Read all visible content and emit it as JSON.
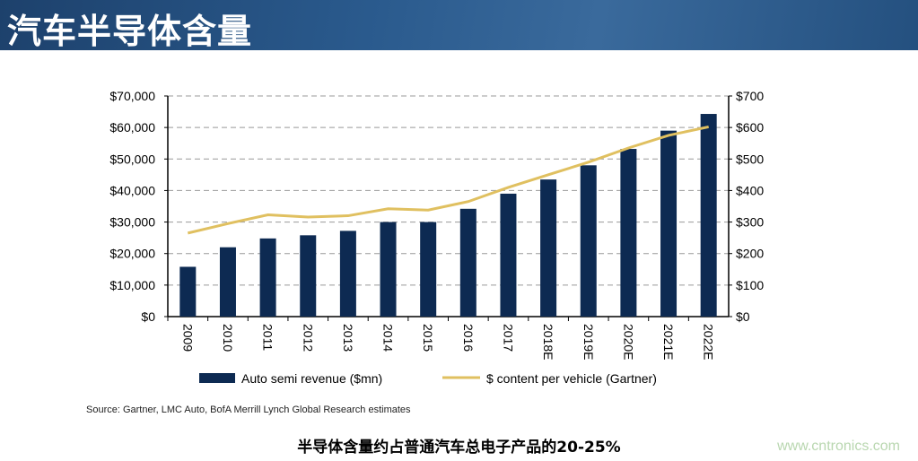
{
  "header": {
    "title": "汽车半导体含量"
  },
  "chart_data": {
    "type": "bar",
    "categories": [
      "2009",
      "2010",
      "2011",
      "2012",
      "2013",
      "2014",
      "2015",
      "2016",
      "2017",
      "2018E",
      "2019E",
      "2020E",
      "2021E",
      "2022E"
    ],
    "series": [
      {
        "name": "Auto semi revenue ($mn)",
        "type": "bar",
        "axis": "left",
        "color": "#0d2a52",
        "values": [
          15800,
          22000,
          24800,
          25800,
          27200,
          30000,
          30000,
          34200,
          39000,
          43500,
          48000,
          53200,
          59000,
          64300
        ]
      },
      {
        "name": "$ content per vehicle (Gartner)",
        "type": "line",
        "axis": "right",
        "color": "#e0c060",
        "values": [
          265,
          295,
          323,
          316,
          320,
          342,
          338,
          365,
          410,
          450,
          490,
          535,
          575,
          602
        ]
      }
    ],
    "y_left": {
      "ylim": [
        0,
        70000
      ],
      "ticks": [
        "$0",
        "$10,000",
        "$20,000",
        "$30,000",
        "$40,000",
        "$50,000",
        "$60,000",
        "$70,000"
      ]
    },
    "y_right": {
      "ylim": [
        0,
        700
      ],
      "ticks": [
        "$0",
        "$100",
        "$200",
        "$300",
        "$400",
        "$500",
        "$600",
        "$700"
      ]
    },
    "grid": "horizontal dashed",
    "legend": "bottom"
  },
  "source": "Source: Gartner, LMC Auto, BofA Merrill Lynch Global Research estimates",
  "caption": "半导体含量约占普通汽车总电子产品的20-25%",
  "watermark": "www.cntronics.com"
}
